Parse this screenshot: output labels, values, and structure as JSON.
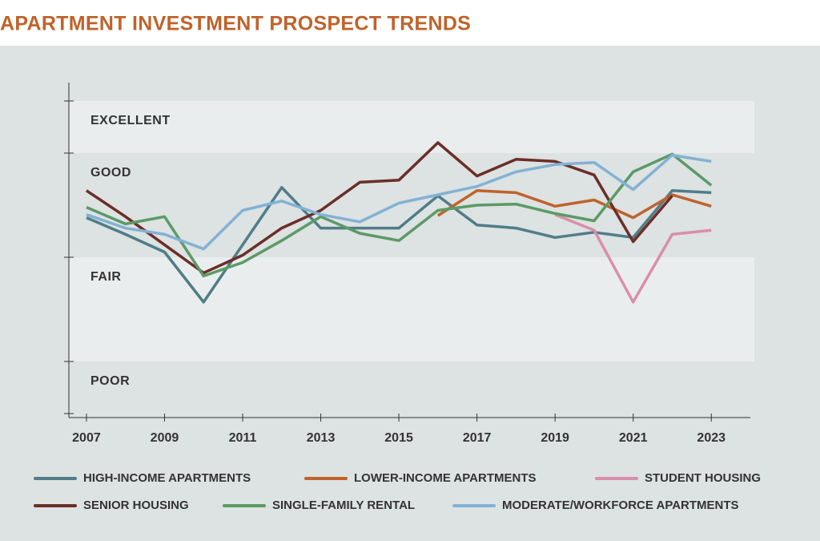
{
  "chart_data": {
    "type": "line",
    "title": "APARTMENT INVESTMENT PROSPECT TRENDS",
    "x": [
      2007,
      2008,
      2009,
      2010,
      2011,
      2012,
      2013,
      2014,
      2015,
      2016,
      2017,
      2018,
      2019,
      2020,
      2021,
      2022,
      2023
    ],
    "xlim": [
      2006.55,
      2024
    ],
    "xticks": [
      2007,
      2009,
      2011,
      2013,
      2015,
      2017,
      2019,
      2021,
      2023
    ],
    "ylim": [
      1.5,
      4.5
    ],
    "yticks": [
      1.5,
      2,
      3,
      4,
      4.5
    ],
    "bands": [
      {
        "label": "EXCELLENT",
        "from": 4,
        "to": 4.5,
        "color": "#eaeded"
      },
      {
        "label": "GOOD",
        "from": 3,
        "to": 4,
        "color": "#dde2e2"
      },
      {
        "label": "FAIR",
        "from": 2,
        "to": 3,
        "color": "#eaeded"
      },
      {
        "label": "POOR",
        "from": 1.5,
        "to": 2,
        "color": "#dde2e2"
      }
    ],
    "series": [
      {
        "name": "HIGH-INCOME APARTMENTS",
        "color": "#4f7d88",
        "values": [
          3.38,
          3.22,
          3.05,
          2.57,
          3.12,
          3.67,
          3.28,
          3.28,
          3.28,
          3.59,
          3.31,
          3.28,
          3.19,
          3.24,
          3.19,
          3.64,
          3.62
        ]
      },
      {
        "name": "LOWER-INCOME APARTMENTS",
        "color": "#c0622a",
        "values": [
          null,
          null,
          null,
          null,
          null,
          null,
          null,
          null,
          null,
          3.4,
          3.64,
          3.62,
          3.49,
          3.55,
          3.38,
          3.6,
          3.49
        ]
      },
      {
        "name": "STUDENT HOUSING",
        "color": "#d98eab",
        "values": [
          null,
          null,
          null,
          null,
          null,
          null,
          null,
          null,
          null,
          null,
          null,
          null,
          3.41,
          3.26,
          2.57,
          3.22,
          3.26
        ]
      },
      {
        "name": "SENIOR HOUSING",
        "color": "#6b2e28",
        "values": [
          3.64,
          3.39,
          3.12,
          2.85,
          3.02,
          3.28,
          3.45,
          3.72,
          3.74,
          4.1,
          3.78,
          3.94,
          3.92,
          3.79,
          3.15,
          3.59,
          null
        ]
      },
      {
        "name": "SINGLE-FAMILY RENTAL",
        "color": "#5b9a66",
        "values": [
          3.48,
          3.32,
          3.39,
          2.82,
          2.95,
          3.16,
          3.39,
          3.23,
          3.16,
          3.45,
          3.5,
          3.51,
          3.42,
          3.35,
          3.82,
          3.99,
          3.69
        ]
      },
      {
        "name": "MODERATE/WORKFORCE APARTMENTS",
        "color": "#82b2d4",
        "values": [
          3.41,
          3.28,
          3.22,
          3.08,
          3.45,
          3.54,
          3.41,
          3.34,
          3.52,
          3.6,
          3.68,
          3.82,
          3.89,
          3.91,
          3.65,
          3.98,
          3.92
        ]
      }
    ]
  }
}
